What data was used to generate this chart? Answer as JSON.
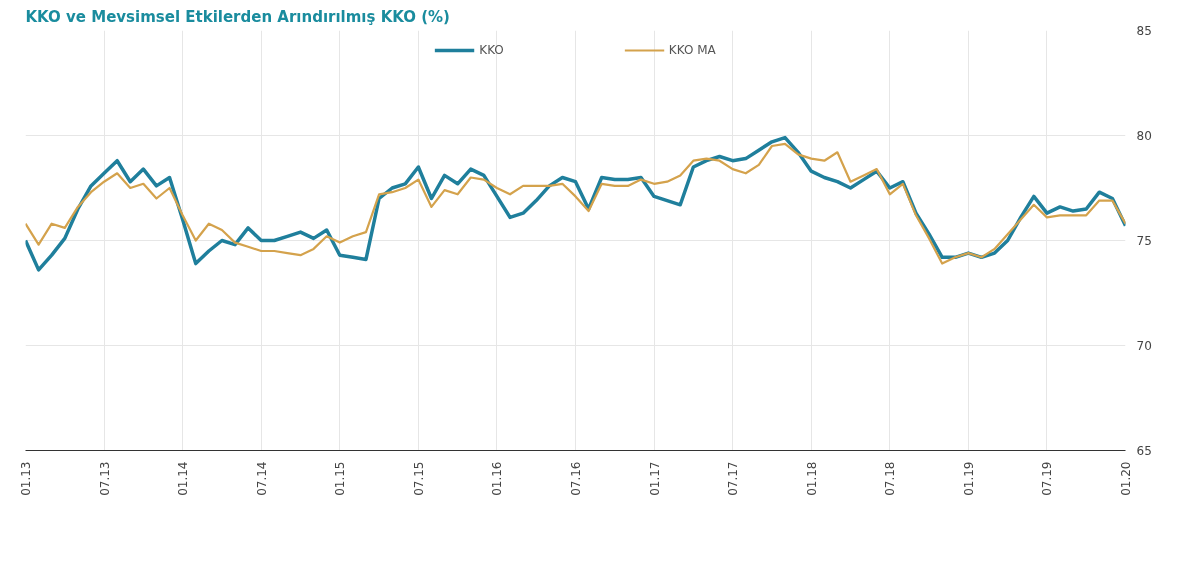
{
  "chart_data": {
    "type": "line",
    "title": "KKO ve Mevsimsel Etkilerden Arındırılmış KKO (%)",
    "x": [
      "2013-01",
      "2013-02",
      "2013-03",
      "2013-04",
      "2013-05",
      "2013-06",
      "2013-07",
      "2013-08",
      "2013-09",
      "2013-10",
      "2013-11",
      "2013-12",
      "2014-01",
      "2014-02",
      "2014-03",
      "2014-04",
      "2014-05",
      "2014-06",
      "2014-07",
      "2014-08",
      "2014-09",
      "2014-10",
      "2014-11",
      "2014-12",
      "2015-01",
      "2015-02",
      "2015-03",
      "2015-04",
      "2015-05",
      "2015-06",
      "2015-07",
      "2015-08",
      "2015-09",
      "2015-10",
      "2015-11",
      "2015-12",
      "2016-01",
      "2016-02",
      "2016-03",
      "2016-04",
      "2016-05",
      "2016-06",
      "2016-07",
      "2016-08",
      "2016-09",
      "2016-10",
      "2016-11",
      "2016-12",
      "2017-01",
      "2017-02",
      "2017-03",
      "2017-04",
      "2017-05",
      "2017-06",
      "2017-07",
      "2017-08",
      "2017-09",
      "2017-10",
      "2017-11",
      "2017-12",
      "2018-01",
      "2018-02",
      "2018-03",
      "2018-04",
      "2018-05",
      "2018-06",
      "2018-07",
      "2018-08",
      "2018-09",
      "2018-10",
      "2018-11",
      "2018-12",
      "2019-01",
      "2019-02",
      "2019-03",
      "2019-04",
      "2019-05",
      "2019-06",
      "2019-07",
      "2019-08",
      "2019-09",
      "2019-10",
      "2019-11",
      "2019-12",
      "2020-01"
    ],
    "series": [
      {
        "name": "KKO",
        "color": "#1f7f9c",
        "values": [
          75.0,
          73.6,
          74.3,
          75.1,
          76.5,
          77.6,
          78.2,
          78.8,
          77.8,
          78.4,
          77.6,
          78.0,
          76.0,
          73.9,
          74.5,
          75.0,
          74.8,
          75.6,
          75.0,
          75.0,
          75.2,
          75.4,
          75.1,
          75.5,
          74.3,
          74.2,
          74.1,
          77.0,
          77.5,
          77.7,
          78.5,
          77.0,
          78.1,
          77.7,
          78.4,
          78.1,
          77.1,
          76.1,
          76.3,
          76.9,
          77.6,
          78.0,
          77.8,
          76.5,
          78.0,
          77.9,
          77.9,
          78.0,
          77.1,
          76.9,
          76.7,
          78.5,
          78.8,
          79.0,
          78.8,
          78.9,
          79.3,
          79.7,
          79.9,
          79.2,
          78.3,
          78.0,
          77.8,
          77.5,
          77.9,
          78.3,
          77.5,
          77.8,
          76.3,
          75.3,
          74.2,
          74.2,
          74.4,
          74.2,
          74.4,
          75.0,
          76.1,
          77.1,
          76.3,
          76.6,
          76.4,
          76.5,
          77.3,
          77.0,
          75.7
        ]
      },
      {
        "name": "KKO MA",
        "color": "#d4a24c",
        "values": [
          75.8,
          74.8,
          75.8,
          75.6,
          76.6,
          77.3,
          77.8,
          78.2,
          77.5,
          77.7,
          77.0,
          77.5,
          76.2,
          75.0,
          75.8,
          75.5,
          74.9,
          74.7,
          74.5,
          74.5,
          74.4,
          74.3,
          74.6,
          75.2,
          74.9,
          75.2,
          75.4,
          77.2,
          77.3,
          77.5,
          77.9,
          76.6,
          77.4,
          77.2,
          78.0,
          77.9,
          77.5,
          77.2,
          77.6,
          77.6,
          77.6,
          77.7,
          77.1,
          76.4,
          77.7,
          77.6,
          77.6,
          77.9,
          77.7,
          77.8,
          78.1,
          78.8,
          78.9,
          78.8,
          78.4,
          78.2,
          78.6,
          79.5,
          79.6,
          79.1,
          78.9,
          78.8,
          79.2,
          77.8,
          78.1,
          78.4,
          77.2,
          77.7,
          76.2,
          75.1,
          73.9,
          74.2,
          74.4,
          74.2,
          74.6,
          75.3,
          76.0,
          76.7,
          76.1,
          76.2,
          76.2,
          76.2,
          76.9,
          76.9,
          75.8
        ]
      }
    ],
    "xlim": [
      "2013-01",
      "2020-01"
    ],
    "xticks": [
      {
        "value": "2013-01",
        "label": "01.13"
      },
      {
        "value": "2013-07",
        "label": "07.13"
      },
      {
        "value": "2014-01",
        "label": "01.14"
      },
      {
        "value": "2014-07",
        "label": "07.14"
      },
      {
        "value": "2015-01",
        "label": "01.15"
      },
      {
        "value": "2015-07",
        "label": "07.15"
      },
      {
        "value": "2016-01",
        "label": "01.16"
      },
      {
        "value": "2016-07",
        "label": "07.16"
      },
      {
        "value": "2017-01",
        "label": "01.17"
      },
      {
        "value": "2017-07",
        "label": "07.17"
      },
      {
        "value": "2018-01",
        "label": "01.18"
      },
      {
        "value": "2018-07",
        "label": "07.18"
      },
      {
        "value": "2019-01",
        "label": "01.19"
      },
      {
        "value": "2019-07",
        "label": "07.19"
      },
      {
        "value": "2020-01",
        "label": "01.20"
      }
    ],
    "ylim": [
      65,
      85
    ],
    "yticks": [
      65,
      70,
      75,
      80,
      85
    ],
    "grid": true,
    "legend": "top",
    "marker": "none",
    "line_style": "solid"
  }
}
